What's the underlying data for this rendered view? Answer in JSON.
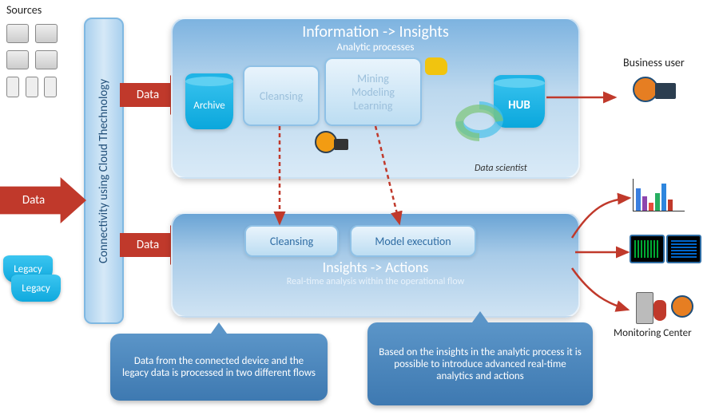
{
  "labels": {
    "sources": "Sources",
    "pipe": "Connectivity using Cloud Thechnology",
    "top_title": "Information -> Insights",
    "top_sub": "Analytic processes",
    "bot_title": "Insights -> Actions",
    "bot_sub": "Real-time analysis within the operational flow",
    "archive": "Archive",
    "cleansing": "Cleansing",
    "mining1": "Mining",
    "mining2": "Modeling",
    "mining3": "Learning",
    "hub": "HUB",
    "cleansing2": "Cleansing",
    "model_exec": "Model execution",
    "data1": "Data",
    "data2": "Data",
    "data3": "Data",
    "legacy": "Legacy",
    "biz_user": "Business user",
    "data_sci": "Data scientist",
    "mon_center": "Monitoring Center",
    "callout1": "Data from the connected device and the legacy data is processed  in two different flows",
    "callout2": "Based on the insights in the analytic process it is possible to introduce advanced real-time analytics and actions"
  },
  "colors": {
    "accent_red": "#c0392b",
    "panel_blue": "#7db3e0",
    "cyl_cyan": "#1fb4e6",
    "callout": "#4a86bd"
  },
  "chart_bars": [
    {
      "h": 28,
      "c": "#3a7fe0"
    },
    {
      "h": 18,
      "c": "#8e44ad"
    },
    {
      "h": 10,
      "c": "#e74c3c"
    },
    {
      "h": 22,
      "c": "#27ae60"
    },
    {
      "h": 34,
      "c": "#2e86de"
    },
    {
      "h": 14,
      "c": "#c0392b"
    }
  ]
}
